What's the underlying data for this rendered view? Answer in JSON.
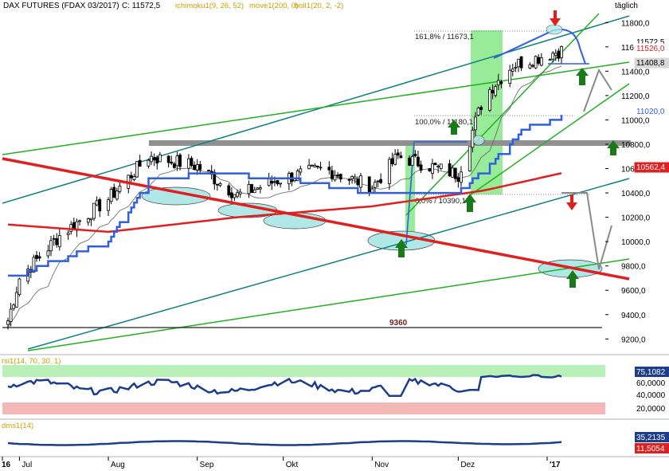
{
  "header": {
    "instrument": "DAX FUTURES (FDAX 03/2017)",
    "close": "C: 11572,5",
    "indicators": [
      {
        "text": "ichimoku1(9, 26, 52)",
        "color": "#c8a000"
      },
      {
        "text": "move1(200, 0)",
        "color": "#c8a000"
      },
      {
        "text": "boll1(20, 2, -2)",
        "color": "#c8a000"
      }
    ],
    "timeframe": "täglich"
  },
  "colors": {
    "candle_up": "#ffffff",
    "candle_down": "#000000",
    "ma200": "#e02020",
    "kijun": "#3060e0",
    "channel_teal": "#108080",
    "channel_green": "#20b020",
    "resistance_zone": "#909090",
    "forecast": "#808080",
    "rsi_line": "#1c3c8c",
    "overbought_band": "#b8f0b8",
    "oversold_band": "#f4b8b8",
    "support_ellipse": "#b0e8e8",
    "arrow_up": "#1a7a1a",
    "arrow_down": "#e02020"
  },
  "annotations": {
    "fib_1618": "161,8% / 11673,1",
    "fib_100": "100,0% / 11180,1",
    "fib_0": "0,0% / 10390,1",
    "support_label": "9360"
  },
  "price_badges": [
    {
      "text": "11572,5",
      "bg": "#ffffff",
      "fg": "#000000"
    },
    {
      "text": "11526,0",
      "bg": "#ffffff",
      "fg": "#e02020"
    },
    {
      "text": "11408,8",
      "bg": "#d8d8d8",
      "fg": "#000000"
    },
    {
      "text": "11020,0",
      "bg": "#ffffff",
      "fg": "#3060e0"
    },
    {
      "text": "10562,4",
      "bg": "#e02020",
      "fg": "#ffffff"
    }
  ],
  "rsi": {
    "label": "rsi1(14, 70, 30, 1)",
    "value": "75,1082",
    "ticks": [
      "60,0000",
      "40,0000",
      "20,0000"
    ]
  },
  "dms": {
    "label": "dms1(14)",
    "value_a": "35,2135",
    "value_b": "11,5054"
  },
  "chart_data": {
    "type": "candlestick",
    "y_axis": {
      "ticks": [
        9200,
        9400,
        9600,
        9800,
        10000,
        10200,
        10400,
        10600,
        10800,
        11000,
        11200,
        11400,
        11600,
        11800
      ],
      "tick_labels": [
        "9200,0",
        "9400,0",
        "9600,0",
        "9800,0",
        "10000,0",
        "10200,0",
        "10400,0",
        "10600,0",
        "10800,0",
        "11000,0",
        "11200,0",
        "11400,0",
        "11600,0",
        "11800,0"
      ],
      "range": [
        9130,
        11900
      ]
    },
    "x_axis": {
      "labels": [
        "16",
        "Jul",
        "Aug",
        "Sep",
        "Okt",
        "Nov",
        "Dez",
        "'17"
      ],
      "label_dates": [
        "2016-06-27",
        "2016-07-01",
        "2016-08-01",
        "2016-09-01",
        "2016-10-01",
        "2016-11-01",
        "2016-12-01",
        "2017-01-01"
      ]
    },
    "ohlc_anchors": [
      {
        "date": "2016-06-27",
        "close": 9350
      },
      {
        "date": "2016-07-01",
        "close": 9700
      },
      {
        "date": "2016-07-15",
        "close": 10050
      },
      {
        "date": "2016-08-01",
        "close": 10350
      },
      {
        "date": "2016-08-15",
        "close": 10700
      },
      {
        "date": "2016-09-01",
        "close": 10620
      },
      {
        "date": "2016-09-15",
        "close": 10380
      },
      {
        "date": "2016-10-01",
        "close": 10520
      },
      {
        "date": "2016-10-15",
        "close": 10600
      },
      {
        "date": "2016-11-01",
        "close": 10450
      },
      {
        "date": "2016-11-10",
        "close": 10700
      },
      {
        "date": "2016-12-01",
        "close": 10550
      },
      {
        "date": "2016-12-10",
        "close": 11200
      },
      {
        "date": "2016-12-20",
        "close": 11450
      },
      {
        "date": "2017-01-06",
        "close": 11572
      }
    ],
    "ma200_anchors": [
      {
        "date": "2016-06-27",
        "value": 10140
      },
      {
        "date": "2016-08-01",
        "value": 10080
      },
      {
        "date": "2016-09-15",
        "value": 10200
      },
      {
        "date": "2016-11-01",
        "value": 10290
      },
      {
        "date": "2016-12-10",
        "value": 10420
      },
      {
        "date": "2017-01-06",
        "value": 10562
      }
    ],
    "kijun_anchors": [
      {
        "date": "2016-06-27",
        "value": 9700
      },
      {
        "date": "2016-08-01",
        "value": 10000
      },
      {
        "date": "2016-08-15",
        "value": 10500
      },
      {
        "date": "2016-09-01",
        "value": 10560
      },
      {
        "date": "2016-10-01",
        "value": 10520
      },
      {
        "date": "2016-11-01",
        "value": 10400
      },
      {
        "date": "2016-12-01",
        "value": 10400
      },
      {
        "date": "2016-12-15",
        "value": 10700
      },
      {
        "date": "2016-12-25",
        "value": 10950
      },
      {
        "date": "2017-01-06",
        "value": 11020
      }
    ],
    "resistance_zone": [
      10770,
      10830
    ],
    "support_level": 9360
  }
}
